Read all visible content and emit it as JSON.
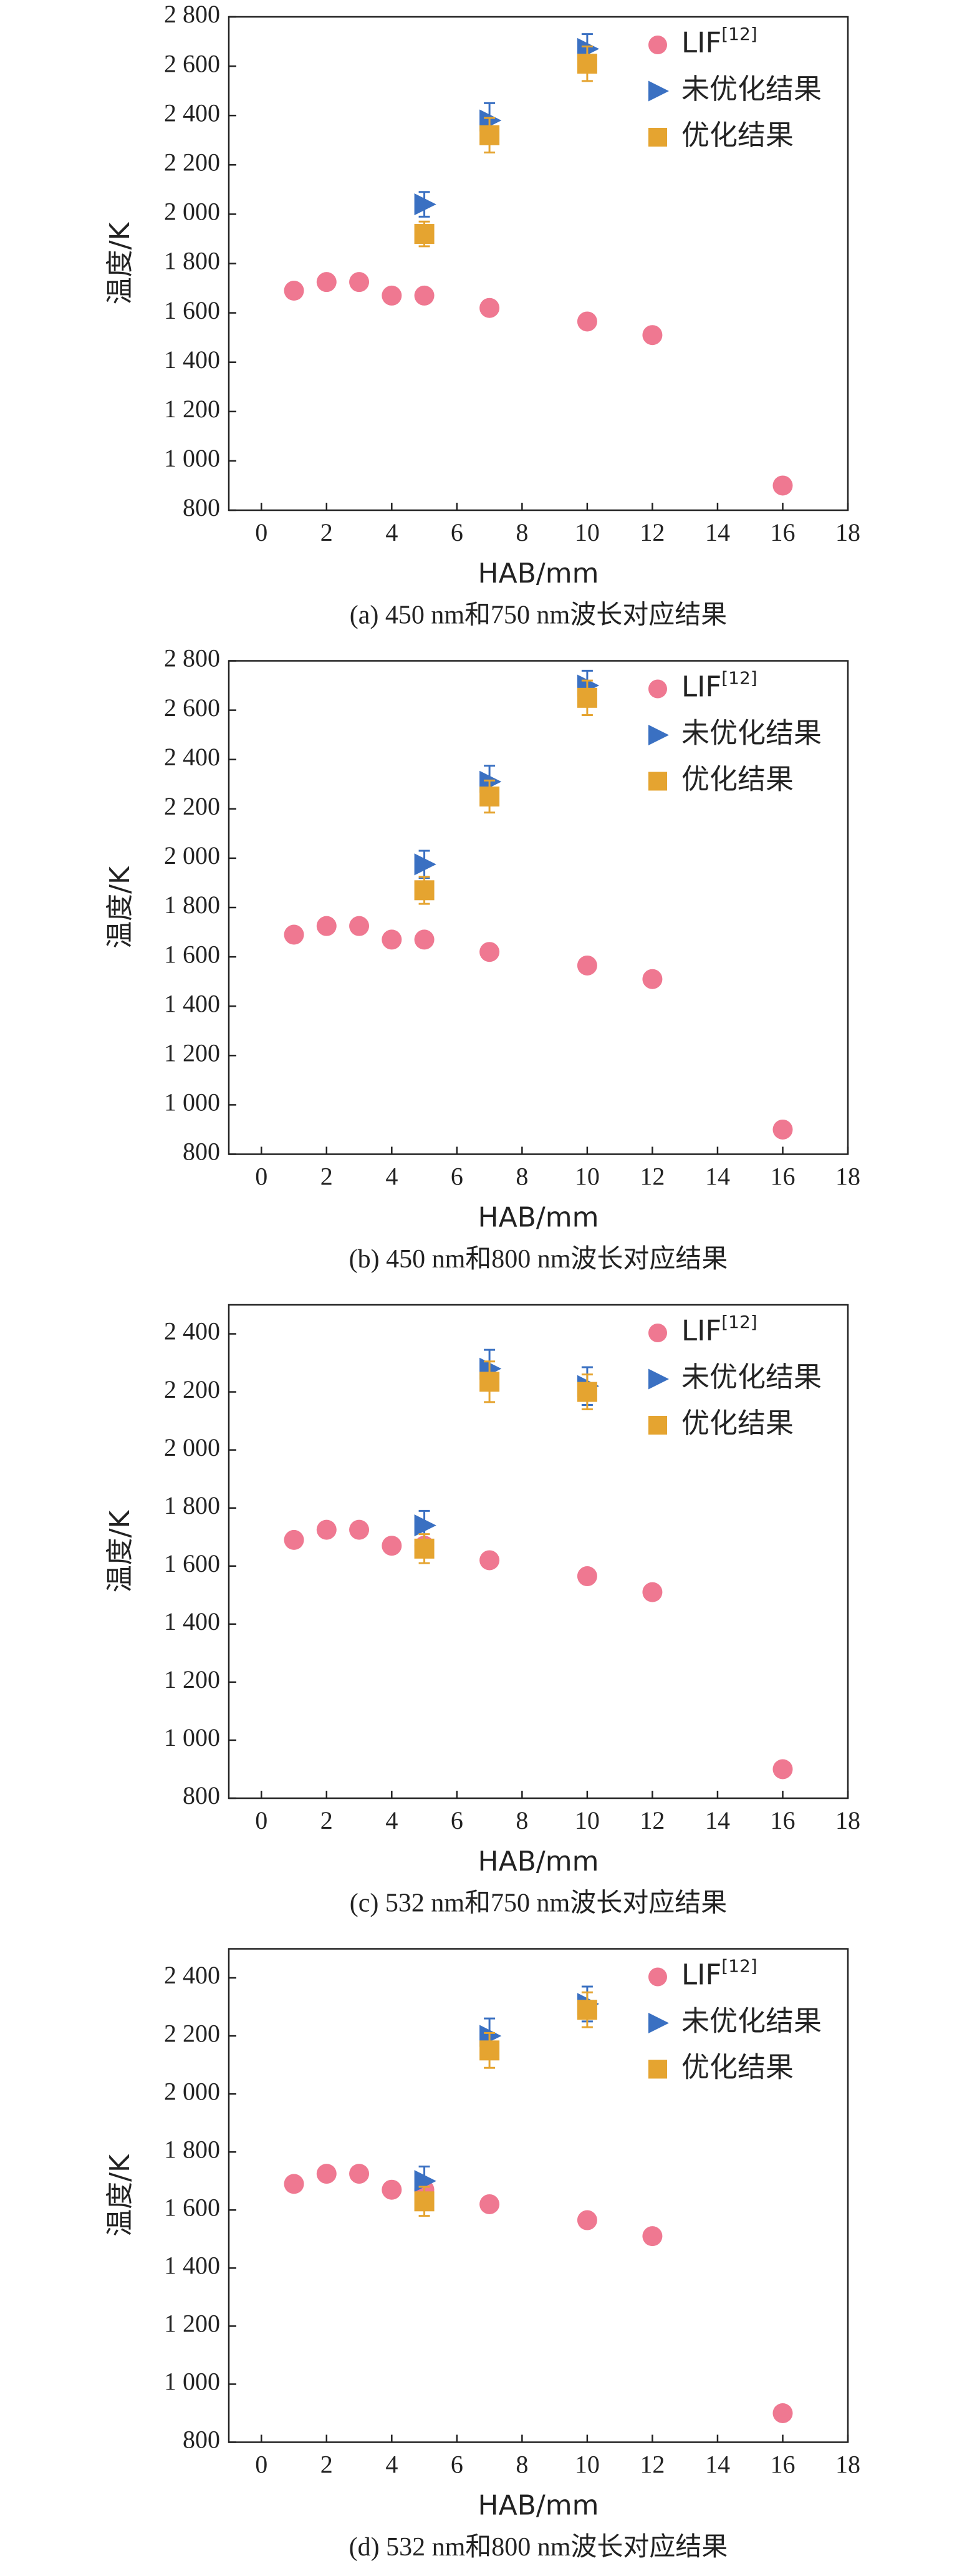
{
  "chart_data": [
    {
      "type": "scatter",
      "caption": "(a) 450 nm和750 nm波长对应结果",
      "x_label": "HAB/mm",
      "y_label": "温度/K",
      "legend": "top-right",
      "xlim": [
        -1,
        18
      ],
      "xticks": [
        0,
        2,
        4,
        6,
        8,
        10,
        12,
        14,
        16,
        18
      ],
      "ylim": [
        800,
        2800
      ],
      "yticks": [
        800,
        {
          "value": 1000,
          "label": "1 000"
        },
        {
          "value": 1200,
          "label": "1 200"
        },
        {
          "value": 1400,
          "label": "1 400"
        },
        {
          "value": 1600,
          "label": "1 600"
        },
        {
          "value": 1800,
          "label": "1 800"
        },
        {
          "value": 2000,
          "label": "2 000"
        },
        {
          "value": 2200,
          "label": "2 200"
        },
        {
          "value": 2400,
          "label": "2 400"
        },
        {
          "value": 2600,
          "label": "2 600"
        },
        {
          "value": 2800,
          "label": "2 800"
        }
      ],
      "series": [
        {
          "name": "LIF",
          "name_superscript": "[12]",
          "color": "#ef7891",
          "marker": "circle",
          "x": [
            1,
            2,
            3,
            4,
            5,
            7,
            10,
            12,
            16
          ],
          "values": [
            1690,
            1725,
            1725,
            1670,
            1670,
            1620,
            1565,
            1510,
            900
          ]
        },
        {
          "name": "未优化结果",
          "color": "#3a70c2",
          "marker": "triangle",
          "x": [
            5,
            7,
            10
          ],
          "values": [
            2040,
            2380,
            2670
          ],
          "errors": [
            50,
            70,
            60
          ]
        },
        {
          "name": "优化结果",
          "color": "#e5a430",
          "marker": "square",
          "x": [
            5,
            7,
            10
          ],
          "values": [
            1920,
            2320,
            2610
          ],
          "errors": [
            50,
            70,
            70
          ]
        }
      ]
    },
    {
      "type": "scatter",
      "caption": "(b) 450 nm和800 nm波长对应结果",
      "x_label": "HAB/mm",
      "y_label": "温度/K",
      "legend": "top-right",
      "xlim": [
        -1,
        18
      ],
      "xticks": [
        0,
        2,
        4,
        6,
        8,
        10,
        12,
        14,
        16,
        18
      ],
      "ylim": [
        800,
        2800
      ],
      "yticks": [
        800,
        {
          "value": 1000,
          "label": "1 000"
        },
        {
          "value": 1200,
          "label": "1 200"
        },
        {
          "value": 1400,
          "label": "1 400"
        },
        {
          "value": 1600,
          "label": "1 600"
        },
        {
          "value": 1800,
          "label": "1 800"
        },
        {
          "value": 2000,
          "label": "2 000"
        },
        {
          "value": 2200,
          "label": "2 200"
        },
        {
          "value": 2400,
          "label": "2 400"
        },
        {
          "value": 2600,
          "label": "2 600"
        },
        {
          "value": 2800,
          "label": "2 800"
        }
      ],
      "series": [
        {
          "name": "LIF",
          "name_superscript": "[12]",
          "color": "#ef7891",
          "marker": "circle",
          "x": [
            1,
            2,
            3,
            4,
            5,
            7,
            10,
            12,
            16
          ],
          "values": [
            1690,
            1725,
            1725,
            1670,
            1670,
            1620,
            1565,
            1510,
            900
          ]
        },
        {
          "name": "未优化结果",
          "color": "#3a70c2",
          "marker": "triangle",
          "x": [
            5,
            7,
            10
          ],
          "values": [
            1975,
            2310,
            2700
          ],
          "errors": [
            55,
            65,
            60
          ]
        },
        {
          "name": "优化结果",
          "color": "#e5a430",
          "marker": "square",
          "x": [
            5,
            7,
            10
          ],
          "values": [
            1870,
            2250,
            2650
          ],
          "errors": [
            55,
            65,
            70
          ]
        }
      ]
    },
    {
      "type": "scatter",
      "caption": "(c) 532 nm和750 nm波长对应结果",
      "x_label": "HAB/mm",
      "y_label": "温度/K",
      "legend": "top-right",
      "xlim": [
        -1,
        18
      ],
      "xticks": [
        0,
        2,
        4,
        6,
        8,
        10,
        12,
        14,
        16,
        18
      ],
      "ylim": [
        800,
        2500
      ],
      "yticks": [
        800,
        {
          "value": 1000,
          "label": "1 000"
        },
        {
          "value": 1200,
          "label": "1 200"
        },
        {
          "value": 1400,
          "label": "1 400"
        },
        {
          "value": 1600,
          "label": "1 600"
        },
        {
          "value": 1800,
          "label": "1 800"
        },
        {
          "value": 2000,
          "label": "2 000"
        },
        {
          "value": 2200,
          "label": "2 200"
        },
        {
          "value": 2400,
          "label": "2 400"
        }
      ],
      "series": [
        {
          "name": "LIF",
          "name_superscript": "[12]",
          "color": "#ef7891",
          "marker": "circle",
          "x": [
            1,
            2,
            3,
            4,
            5,
            7,
            10,
            12,
            16
          ],
          "values": [
            1690,
            1725,
            1725,
            1670,
            1670,
            1620,
            1565,
            1510,
            900
          ]
        },
        {
          "name": "未优化结果",
          "color": "#3a70c2",
          "marker": "triangle",
          "x": [
            5,
            7,
            10
          ],
          "values": [
            1740,
            2280,
            2220
          ],
          "errors": [
            50,
            65,
            65
          ]
        },
        {
          "name": "优化结果",
          "color": "#e5a430",
          "marker": "square",
          "x": [
            5,
            7,
            10
          ],
          "values": [
            1660,
            2235,
            2200
          ],
          "errors": [
            50,
            70,
            60
          ]
        }
      ]
    },
    {
      "type": "scatter",
      "caption": "(d) 532 nm和800 nm波长对应结果",
      "x_label": "HAB/mm",
      "y_label": "温度/K",
      "legend": "top-right",
      "xlim": [
        -1,
        18
      ],
      "xticks": [
        0,
        2,
        4,
        6,
        8,
        10,
        12,
        14,
        16,
        18
      ],
      "ylim": [
        800,
        2500
      ],
      "yticks": [
        800,
        {
          "value": 1000,
          "label": "1 000"
        },
        {
          "value": 1200,
          "label": "1 200"
        },
        {
          "value": 1400,
          "label": "1 400"
        },
        {
          "value": 1600,
          "label": "1 600"
        },
        {
          "value": 1800,
          "label": "1 800"
        },
        {
          "value": 2000,
          "label": "2 000"
        },
        {
          "value": 2200,
          "label": "2 200"
        },
        {
          "value": 2400,
          "label": "2 400"
        }
      ],
      "series": [
        {
          "name": "LIF",
          "name_superscript": "[12]",
          "color": "#ef7891",
          "marker": "circle",
          "x": [
            1,
            2,
            3,
            4,
            5,
            7,
            10,
            12,
            16
          ],
          "values": [
            1690,
            1725,
            1725,
            1670,
            1670,
            1620,
            1565,
            1510,
            900
          ]
        },
        {
          "name": "未优化结果",
          "color": "#3a70c2",
          "marker": "triangle",
          "x": [
            5,
            7,
            10
          ],
          "values": [
            1700,
            2200,
            2310
          ],
          "errors": [
            50,
            60,
            60
          ]
        },
        {
          "name": "优化结果",
          "color": "#e5a430",
          "marker": "square",
          "x": [
            5,
            7,
            10
          ],
          "values": [
            1630,
            2150,
            2290
          ],
          "errors": [
            50,
            60,
            60
          ]
        }
      ]
    }
  ]
}
